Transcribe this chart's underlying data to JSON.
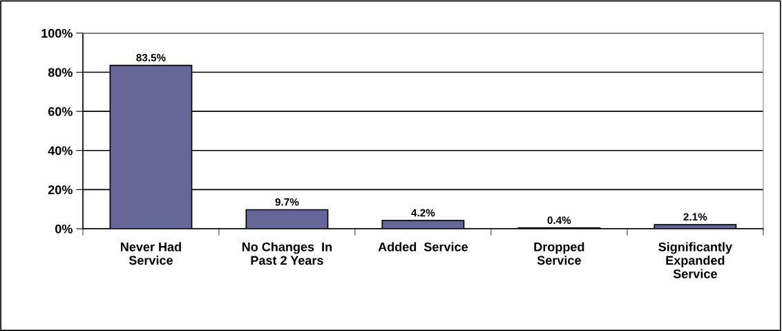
{
  "chart_data": {
    "type": "bar",
    "categories": [
      "Never Had\nService",
      "No Changes  In\nPast 2 Years",
      "Added  Service",
      "Dropped\nService",
      "Significantly\nExpanded\nService"
    ],
    "values": [
      83.5,
      9.7,
      4.2,
      0.4,
      2.1
    ],
    "value_labels": [
      "83.5%",
      "9.7%",
      "4.2%",
      "0.4%",
      "2.1%"
    ],
    "color": "#666699",
    "ylim": [
      0,
      100
    ],
    "yticks": [
      {
        "value": 0,
        "label": "0%"
      },
      {
        "value": 20,
        "label": "20%"
      },
      {
        "value": 40,
        "label": "40%"
      },
      {
        "value": 60,
        "label": "60%"
      },
      {
        "value": 80,
        "label": "80%"
      },
      {
        "value": 100,
        "label": "100%"
      }
    ],
    "grid": "y"
  }
}
